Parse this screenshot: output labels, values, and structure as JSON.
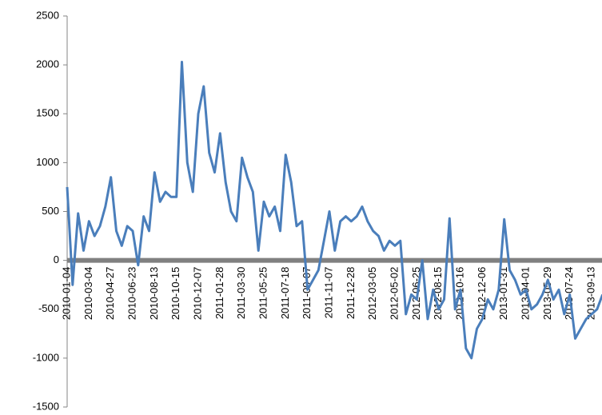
{
  "chart_data": {
    "type": "line",
    "categories": [
      "2010-01-04",
      null,
      null,
      null,
      "2010-03-04",
      null,
      null,
      null,
      "2010-04-27",
      null,
      null,
      null,
      "2010-06-23",
      null,
      null,
      null,
      "2010-08-13",
      null,
      null,
      null,
      "2010-10-15",
      null,
      null,
      null,
      "2010-12-07",
      null,
      null,
      null,
      "2011-01-28",
      null,
      null,
      null,
      "2011-03-30",
      null,
      null,
      null,
      "2011-05-25",
      null,
      null,
      null,
      "2011-07-18",
      null,
      null,
      null,
      "2011-09-07",
      null,
      null,
      null,
      "2011-11-07",
      null,
      null,
      null,
      "2011-12-28",
      null,
      null,
      null,
      "2012-03-05",
      null,
      null,
      null,
      "2012-05-02",
      null,
      null,
      null,
      "2012-06-25",
      null,
      null,
      null,
      "2012-08-15",
      null,
      null,
      null,
      "2012-10-16",
      null,
      null,
      null,
      "2012-12-06",
      null,
      null,
      null,
      "2013-01-31",
      null,
      null,
      null,
      "2013-04-01",
      null,
      null,
      null,
      "2013-05-29",
      null,
      null,
      null,
      "2013-07-24",
      null,
      null,
      null,
      "2013-09-13",
      null,
      null
    ],
    "values": [
      750,
      -250,
      480,
      100,
      400,
      250,
      350,
      550,
      850,
      300,
      150,
      350,
      300,
      -50,
      450,
      300,
      900,
      600,
      700,
      650,
      650,
      2030,
      1000,
      700,
      1500,
      1780,
      1100,
      900,
      1300,
      800,
      500,
      400,
      1050,
      850,
      700,
      100,
      600,
      450,
      550,
      300,
      1080,
      800,
      350,
      400,
      -300,
      -200,
      -100,
      200,
      500,
      100,
      400,
      450,
      400,
      450,
      550,
      400,
      300,
      250,
      100,
      200,
      150,
      200,
      -550,
      -350,
      -400,
      0,
      -600,
      -300,
      -500,
      -400,
      430,
      -500,
      -300,
      -900,
      -1000,
      -700,
      -600,
      -400,
      -500,
      -300,
      420,
      -100,
      -200,
      -350,
      -300,
      -500,
      -450,
      -350,
      -200,
      -400,
      -300,
      -550,
      -350,
      -800,
      -700,
      -600,
      -550,
      -500,
      -350
    ],
    "color": "#4a7ebb",
    "ylim": [
      -1500,
      2500
    ],
    "yticks": [
      -1500,
      -1000,
      -500,
      0,
      500,
      1000,
      1500,
      2000,
      2500
    ]
  }
}
